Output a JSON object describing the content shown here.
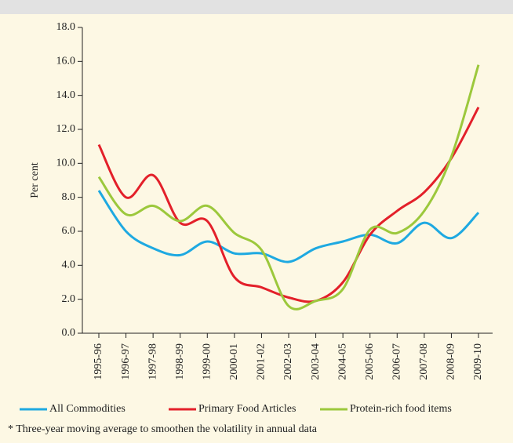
{
  "chart_data": {
    "type": "line",
    "y_label": "Per cent",
    "categories": [
      "1995-96",
      "1996-97",
      "1997-98",
      "1998-99",
      "1999-00",
      "2000-01",
      "2001-02",
      "2002-03",
      "2003-04",
      "2004-05",
      "2005-06",
      "2006-07",
      "2007-08",
      "2008-09",
      "2009-10"
    ],
    "series": [
      {
        "name": "All Commodities",
        "color": "#1ea9e1",
        "values": [
          8.4,
          6.0,
          5.0,
          4.6,
          5.4,
          4.7,
          4.7,
          4.2,
          5.0,
          5.4,
          5.8,
          5.3,
          6.5,
          5.6,
          7.1
        ]
      },
      {
        "name": "Primary Food Articles",
        "color": "#e3202a",
        "values": [
          11.1,
          8.0,
          9.3,
          6.5,
          6.6,
          3.3,
          2.7,
          2.1,
          1.9,
          3.0,
          5.8,
          7.2,
          8.3,
          10.3,
          13.3
        ]
      },
      {
        "name": "Protein-rich food items",
        "color": "#9cc83c",
        "values": [
          9.2,
          7.0,
          7.5,
          6.6,
          7.5,
          5.9,
          4.9,
          1.6,
          1.9,
          2.6,
          6.1,
          5.9,
          7.2,
          10.4,
          15.8
        ]
      }
    ],
    "ylim": [
      0,
      18
    ],
    "yticks": [
      {
        "value": 0,
        "label": "0.0"
      },
      {
        "value": 2,
        "label": "2.0"
      },
      {
        "value": 4,
        "label": "4.0"
      },
      {
        "value": 6,
        "label": "6.0"
      },
      {
        "value": 8,
        "label": "8.0"
      },
      {
        "value": 10,
        "label": "10.0"
      },
      {
        "value": 12,
        "label": "12.0"
      },
      {
        "value": 14,
        "label": "14.0"
      },
      {
        "value": 16,
        "label": "16.0"
      },
      {
        "value": 18,
        "label": "18.0"
      }
    ],
    "footnote": "* Three-year moving average to smoothen the volatility in annual  data"
  }
}
